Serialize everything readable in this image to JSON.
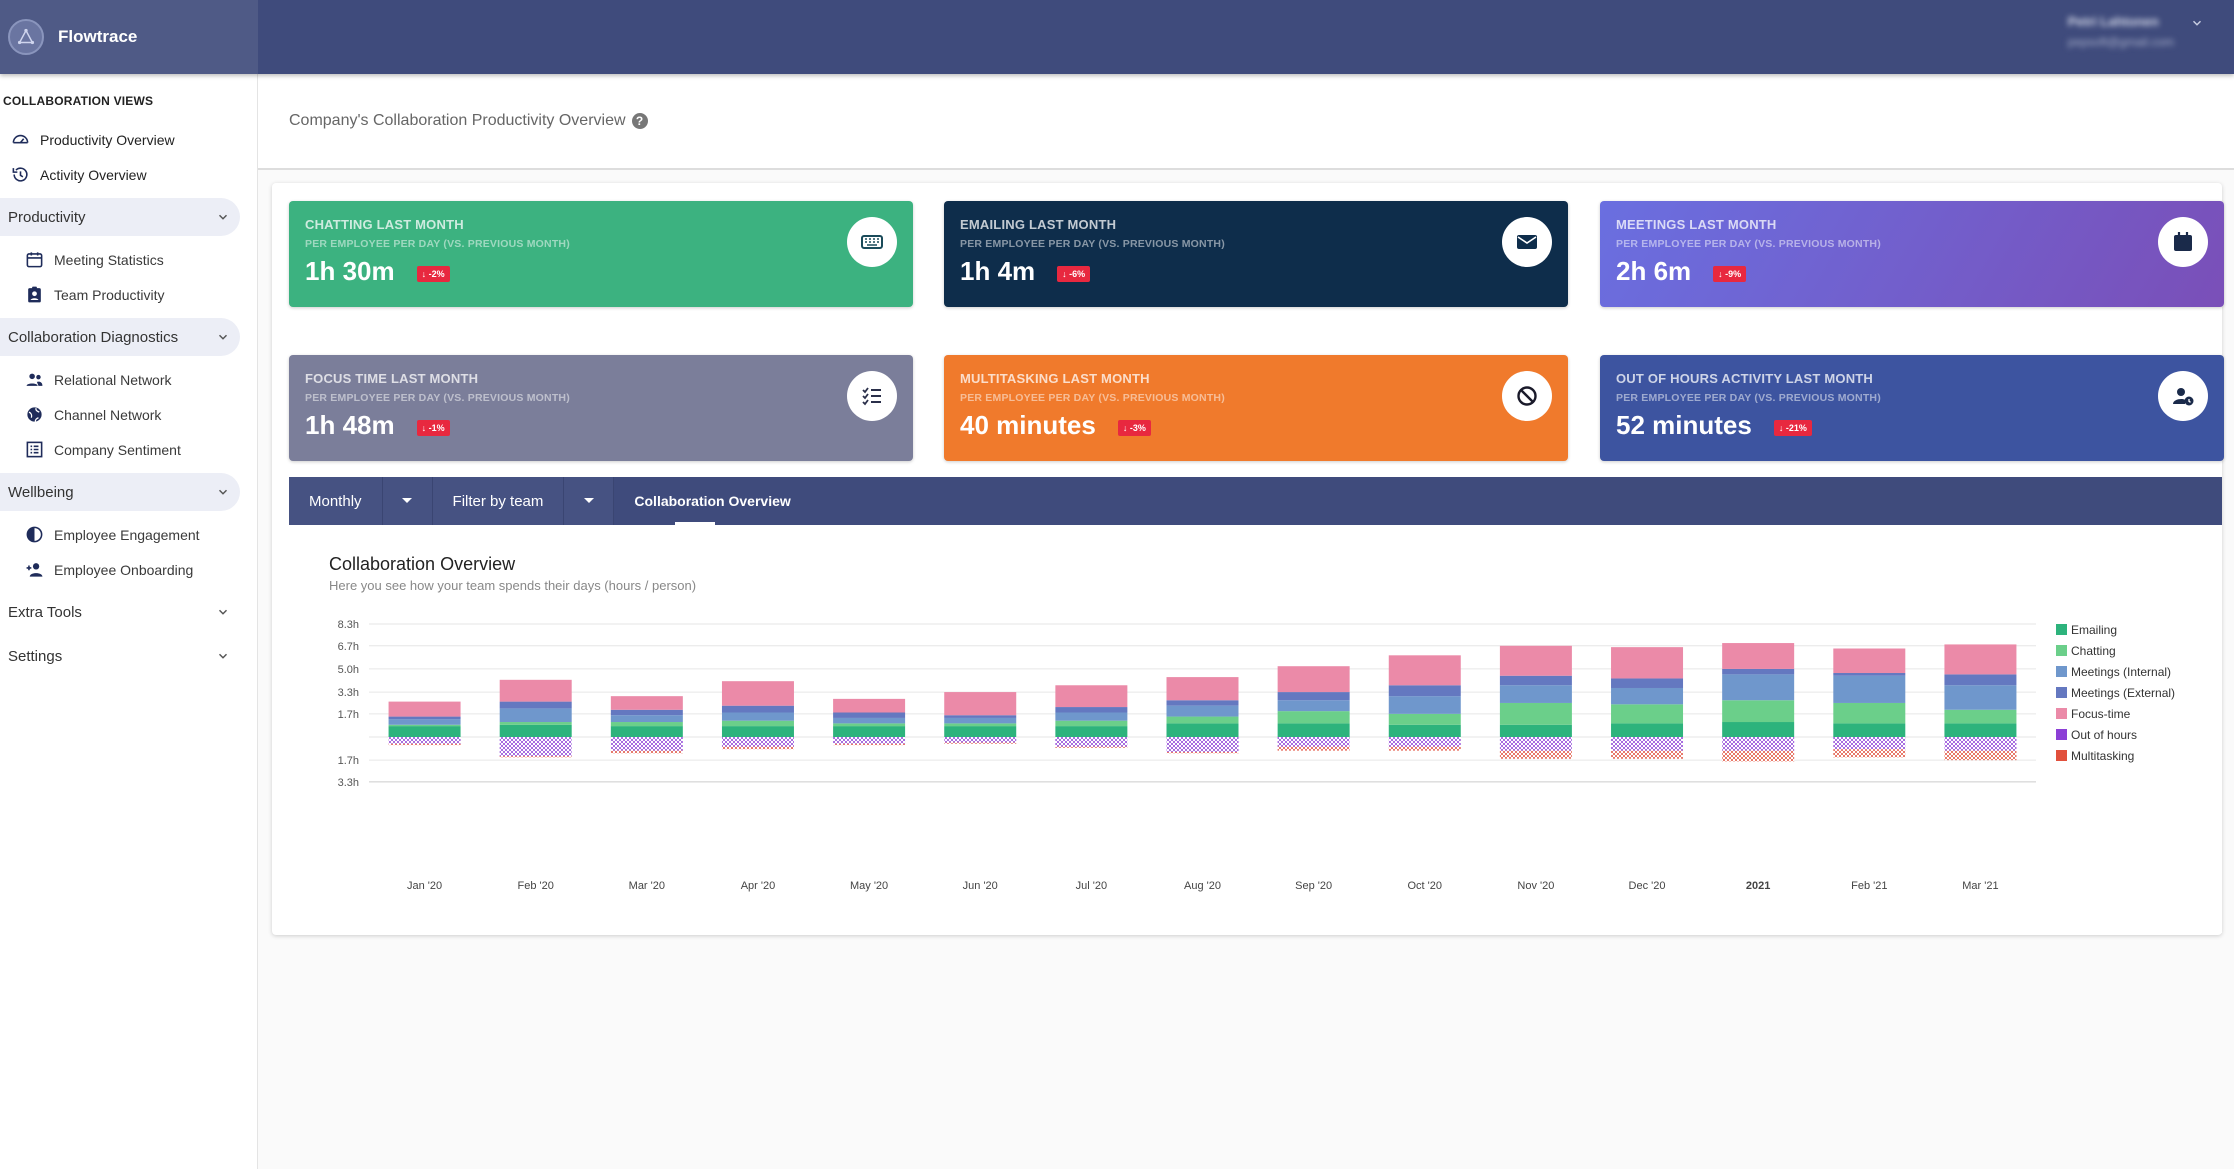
{
  "app": {
    "name": "Flowtrace"
  },
  "user": {
    "name": "Petri Lahtonen",
    "email": "pepsoft@gmail.com"
  },
  "sidebar": {
    "section_title": "COLLABORATION VIEWS",
    "top_items": [
      {
        "label": "Productivity Overview",
        "icon": "speedometer-icon"
      },
      {
        "label": "Activity Overview",
        "icon": "history-icon"
      }
    ],
    "groups": [
      {
        "label": "Productivity",
        "items": [
          {
            "label": "Meeting Statistics",
            "icon": "calendar-icon"
          },
          {
            "label": "Team Productivity",
            "icon": "badge-icon"
          }
        ]
      },
      {
        "label": "Collaboration Diagnostics",
        "items": [
          {
            "label": "Relational Network",
            "icon": "people-icon"
          },
          {
            "label": "Channel Network",
            "icon": "globe-icon"
          },
          {
            "label": "Company Sentiment",
            "icon": "list-box-icon"
          }
        ]
      },
      {
        "label": "Wellbeing",
        "items": [
          {
            "label": "Employee Engagement",
            "icon": "contrast-icon"
          },
          {
            "label": "Employee Onboarding",
            "icon": "person-add-icon"
          }
        ]
      },
      {
        "label": "Extra Tools",
        "items": []
      },
      {
        "label": "Settings",
        "items": []
      }
    ]
  },
  "page": {
    "title": "Company's Collaboration Productivity Overview"
  },
  "kpis": [
    {
      "title": "CHATTING LAST MONTH",
      "subtitle": "PER EMPLOYEE PER DAY (VS. PREVIOUS MONTH)",
      "value": "1h 30m",
      "change": "-2%",
      "color": "#3cb280",
      "icon": "keyboard-icon",
      "icon_color": "#1a4b5a"
    },
    {
      "title": "EMAILING LAST MONTH",
      "subtitle": "PER EMPLOYEE PER DAY (VS. PREVIOUS MONTH)",
      "value": "1h 4m",
      "change": "-6%",
      "color": "#0e2d4b",
      "icon": "email-icon",
      "icon_color": "#0e2d4b"
    },
    {
      "title": "MEETINGS LAST MONTH",
      "subtitle": "PER EMPLOYEE PER DAY (VS. PREVIOUS MONTH)",
      "value": "2h 6m",
      "change": "-9%",
      "color": "#6a66d6",
      "icon": "calendar-icon",
      "icon_color": "#1a2a4a"
    },
    {
      "title": "FOCUS TIME LAST MONTH",
      "subtitle": "PER EMPLOYEE PER DAY (VS. PREVIOUS MONTH)",
      "value": "1h 48m",
      "change": "-1%",
      "color": "#7b7e9a",
      "icon": "checklist-icon",
      "icon_color": "#2a2f4a"
    },
    {
      "title": "MULTITASKING LAST MONTH",
      "subtitle": "PER EMPLOYEE PER DAY (VS. PREVIOUS MONTH)",
      "value": "40 minutes",
      "change": "-3%",
      "color": "#f07a2c",
      "icon": "block-icon",
      "icon_color": "#1a1a2a"
    },
    {
      "title": "OUT OF HOURS ACTIVITY LAST MONTH",
      "subtitle": "PER EMPLOYEE PER DAY (VS. PREVIOUS MONTH)",
      "value": "52 minutes",
      "change": "-21%",
      "color": "#3d54a0",
      "icon": "person-clock-icon",
      "icon_color": "#1a2a4a"
    }
  ],
  "filters": {
    "period": "Monthly",
    "team": "Filter by team",
    "tab": "Collaboration Overview"
  },
  "chart_data": {
    "type": "bar",
    "stacked": true,
    "title": "Collaboration Overview",
    "subtitle": "Here you see how your team spends their days (hours / person)",
    "categories": [
      "Jan '20",
      "Feb '20",
      "Mar '20",
      "Apr '20",
      "May '20",
      "Jun '20",
      "Jul '20",
      "Aug '20",
      "Sep '20",
      "Oct '20",
      "Nov '20",
      "Dec '20",
      "2021",
      "Feb '21",
      "Mar '21"
    ],
    "y_ticks": [
      "8.3h",
      "6.7h",
      "5.0h",
      "3.3h",
      "1.7h",
      "",
      "1.7h",
      "3.3h"
    ],
    "ylim": [
      -3.3,
      8.3
    ],
    "series": [
      {
        "name": "Emailing",
        "color": "#2db37c",
        "values": [
          0.8,
          0.9,
          0.8,
          0.8,
          0.8,
          0.8,
          0.8,
          1.0,
          1.0,
          0.9,
          0.9,
          1.0,
          1.1,
          1.0,
          1.0
        ]
      },
      {
        "name": "Chatting",
        "color": "#6bcf8a",
        "values": [
          0.1,
          0.2,
          0.3,
          0.4,
          0.2,
          0.2,
          0.4,
          0.5,
          0.9,
          0.8,
          1.6,
          1.4,
          1.6,
          1.5,
          1.0
        ]
      },
      {
        "name": "Meetings (Internal)",
        "color": "#6f97cc",
        "values": [
          0.4,
          1.0,
          0.5,
          0.6,
          0.4,
          0.4,
          0.6,
          0.8,
          0.8,
          1.3,
          1.3,
          1.2,
          1.9,
          2.0,
          1.8
        ]
      },
      {
        "name": "Meetings (External)",
        "color": "#6478c0",
        "values": [
          0.2,
          0.5,
          0.4,
          0.5,
          0.4,
          0.2,
          0.4,
          0.4,
          0.6,
          0.8,
          0.7,
          0.7,
          0.4,
          0.2,
          0.8
        ]
      },
      {
        "name": "Focus-time",
        "color": "#eb8aa8",
        "values": [
          1.1,
          1.6,
          1.0,
          1.8,
          1.0,
          1.7,
          1.6,
          1.7,
          1.9,
          2.2,
          2.2,
          2.3,
          1.9,
          1.8,
          2.2
        ]
      },
      {
        "name": "Out of hours",
        "color": "#8c3fd6",
        "values": [
          -0.5,
          -1.4,
          -1.0,
          -0.7,
          -0.5,
          -0.4,
          -0.7,
          -1.1,
          -0.7,
          -0.7,
          -1.0,
          -1.0,
          -1.0,
          -0.9,
          -1.0
        ]
      },
      {
        "name": "Multitasking",
        "color": "#e1503c",
        "values": [
          -0.1,
          -0.1,
          -0.2,
          -0.2,
          -0.1,
          -0.1,
          -0.1,
          -0.1,
          -0.3,
          -0.3,
          -0.6,
          -0.6,
          -0.8,
          -0.6,
          -0.7
        ]
      }
    ],
    "legend_position": "right",
    "grid": true
  }
}
